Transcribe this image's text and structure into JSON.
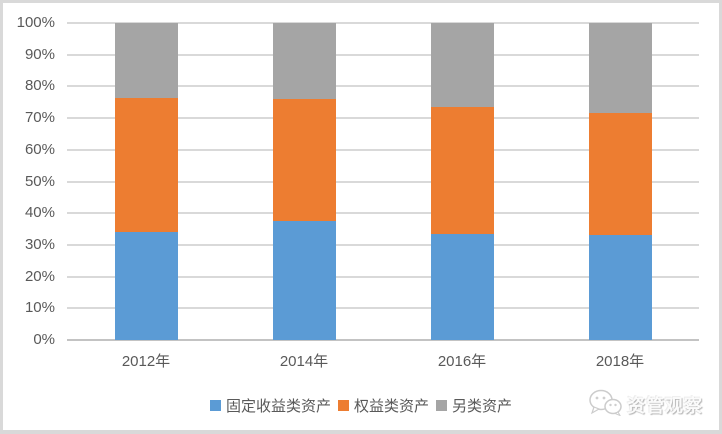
{
  "chart_data": {
    "type": "bar",
    "subtype": "100-percent-stacked-column",
    "title": "",
    "xlabel": "",
    "ylabel": "",
    "categories": [
      "2012年",
      "2014年",
      "2016年",
      "2018年"
    ],
    "series": [
      {
        "name": "固定收益类资产",
        "color": "#5B9BD5",
        "values": [
          34,
          37.5,
          33.5,
          33
        ]
      },
      {
        "name": "权益类资产",
        "color": "#ED7D31",
        "values": [
          42.5,
          38.5,
          40,
          38.5
        ]
      },
      {
        "name": "另类资产",
        "color": "#A5A5A5",
        "values": [
          23.5,
          24,
          26.5,
          28.5
        ]
      }
    ],
    "ylim": [
      0,
      100
    ],
    "yticks": [
      0,
      10,
      20,
      30,
      40,
      50,
      60,
      70,
      80,
      90,
      100
    ],
    "ytick_suffix": "%",
    "grid": true,
    "legend_position": "bottom"
  },
  "watermark": {
    "label": "资管观察",
    "icon": "wechat-icon"
  },
  "style": {
    "background": "#FFFFFF",
    "border_color": "#D9D9D9",
    "gridline_color": "#D9D9D9",
    "axis_line_color": "#C3C3C3",
    "label_color": "#595959"
  }
}
